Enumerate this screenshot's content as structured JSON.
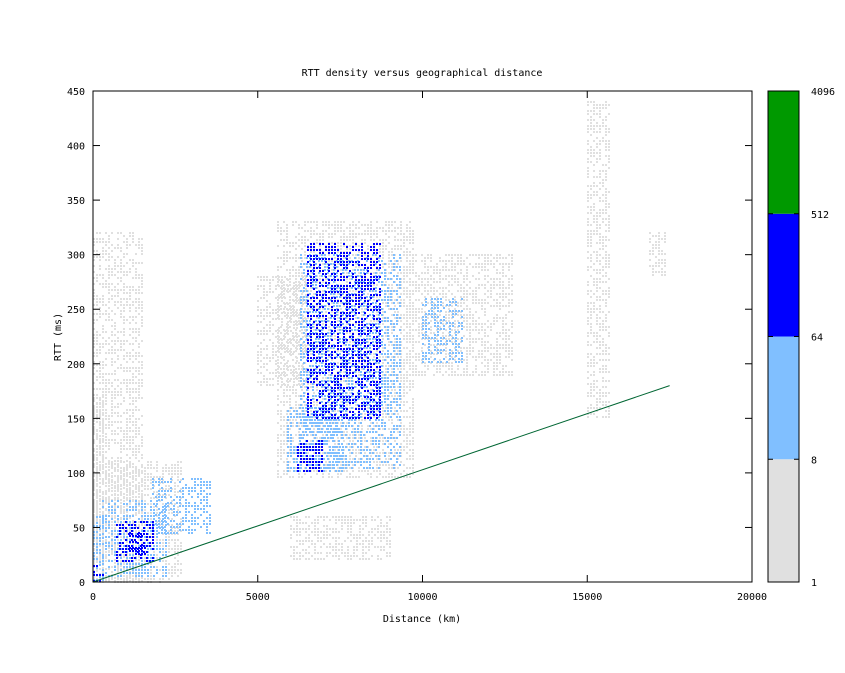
{
  "chart_data": {
    "type": "heatmap",
    "title": "RTT density versus geographical distance",
    "xlabel": "Distance (km)",
    "ylabel": "RTT (ms)",
    "xlim": [
      0,
      20000
    ],
    "ylim": [
      0,
      450
    ],
    "x_ticks": [
      "0",
      "5000",
      "10000",
      "15000",
      "20000"
    ],
    "y_ticks": [
      "0",
      "50",
      "100",
      "150",
      "200",
      "250",
      "300",
      "350",
      "400",
      "450"
    ],
    "grid": false,
    "colorbar": {
      "scale": "log",
      "bins": [
        {
          "from": 1,
          "to": 8,
          "color": "#e0e0e0"
        },
        {
          "from": 8,
          "to": 64,
          "color": "#80bfff"
        },
        {
          "from": 64,
          "to": 512,
          "color": "#0000ff"
        },
        {
          "from": 512,
          "to": 4096,
          "color": "#009900"
        }
      ],
      "tick_labels": [
        "1",
        "8",
        "64",
        "512",
        "4096"
      ]
    },
    "reference_line": {
      "color": "#006633",
      "points": [
        [
          0,
          0
        ],
        [
          17500,
          180
        ]
      ]
    },
    "density_regions": [
      {
        "x": [
          0,
          2700
        ],
        "y": [
          0,
          110
        ],
        "level": 1
      },
      {
        "x": [
          0,
          300
        ],
        "y": [
          0,
          170
        ],
        "level": 1
      },
      {
        "x": [
          0,
          1500
        ],
        "y": [
          0,
          320
        ],
        "level": 1
      },
      {
        "x": [
          300,
          2200
        ],
        "y": [
          5,
          75
        ],
        "level": 2
      },
      {
        "x": [
          1800,
          3600
        ],
        "y": [
          45,
          95
        ],
        "level": 2
      },
      {
        "x": [
          0,
          350
        ],
        "y": [
          0,
          60
        ],
        "level": 2
      },
      {
        "x": [
          700,
          1800
        ],
        "y": [
          20,
          55
        ],
        "level": 3
      },
      {
        "x": [
          0,
          350
        ],
        "y": [
          0,
          15
        ],
        "level": 3
      },
      {
        "x": [
          1100,
          1600
        ],
        "y": [
          25,
          45
        ],
        "level": 3
      },
      {
        "x": [
          5600,
          9700
        ],
        "y": [
          95,
          330
        ],
        "level": 1
      },
      {
        "x": [
          5000,
          6500
        ],
        "y": [
          180,
          280
        ],
        "level": 1
      },
      {
        "x": [
          9500,
          12700
        ],
        "y": [
          190,
          300
        ],
        "level": 1
      },
      {
        "x": [
          6000,
          9000
        ],
        "y": [
          20,
          60
        ],
        "level": 1
      },
      {
        "x": [
          6300,
          9300
        ],
        "y": [
          105,
          300
        ],
        "level": 2
      },
      {
        "x": [
          5900,
          7600
        ],
        "y": [
          100,
          160
        ],
        "level": 2
      },
      {
        "x": [
          10000,
          11200
        ],
        "y": [
          200,
          260
        ],
        "level": 2
      },
      {
        "x": [
          6200,
          7000
        ],
        "y": [
          100,
          130
        ],
        "level": 3
      },
      {
        "x": [
          6500,
          8700
        ],
        "y": [
          150,
          310
        ],
        "level": 3
      },
      {
        "x": [
          15000,
          15700
        ],
        "y": [
          150,
          440
        ],
        "level": 1
      },
      {
        "x": [
          16900,
          17400
        ],
        "y": [
          280,
          320
        ],
        "level": 1
      }
    ]
  }
}
